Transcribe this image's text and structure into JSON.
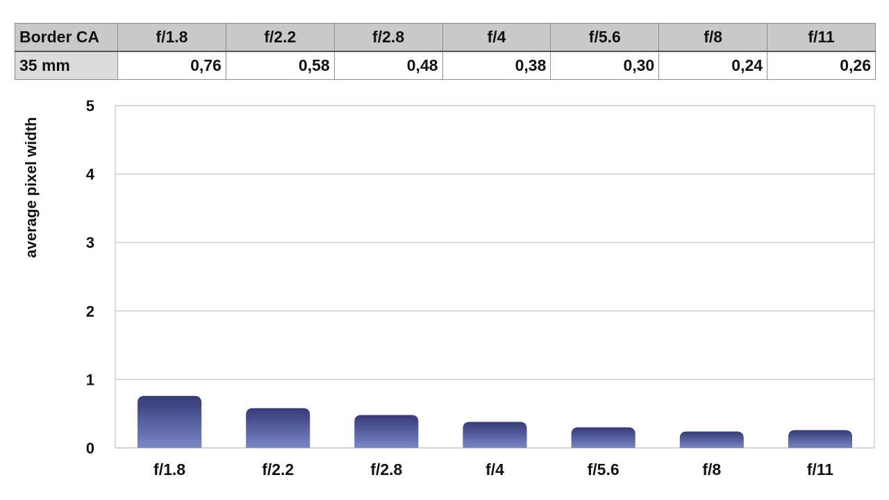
{
  "table": {
    "corner_label": "Border CA",
    "headers": [
      "f/1.8",
      "f/2.2",
      "f/2.8",
      "f/4",
      "f/5.6",
      "f/8",
      "f/11"
    ],
    "row_label": "35 mm",
    "values": [
      "0,76",
      "0,58",
      "0,48",
      "0,38",
      "0,30",
      "0,24",
      "0,26"
    ]
  },
  "chart_data": {
    "type": "bar",
    "categories": [
      "f/1.8",
      "f/2.2",
      "f/2.8",
      "f/4",
      "f/5.6",
      "f/8",
      "f/11"
    ],
    "values": [
      0.76,
      0.58,
      0.48,
      0.38,
      0.3,
      0.24,
      0.26
    ],
    "title": "",
    "xlabel": "",
    "ylabel": "average pixel width",
    "ylim": [
      0,
      5
    ],
    "yticks": [
      "0",
      "1",
      "2",
      "3",
      "4",
      "5"
    ],
    "grid": true,
    "legend": "none",
    "colors": {
      "bar_top": "#363a78",
      "bar_bottom": "#7a86c6",
      "grid": "#cfcfcf"
    }
  }
}
